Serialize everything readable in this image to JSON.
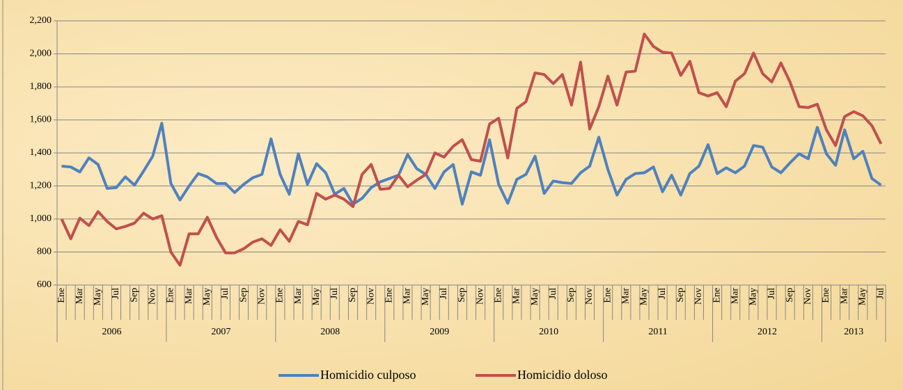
{
  "chart_data": {
    "type": "line",
    "categories": [
      "Ene",
      null,
      "Mar",
      null,
      "May",
      null,
      "Jul",
      null,
      "Sep",
      null,
      "Nov",
      null,
      "Ene",
      null,
      "Mar",
      null,
      "May",
      null,
      "Jul",
      null,
      "Sep",
      null,
      "Nov",
      null,
      "Ene",
      null,
      "Mar",
      null,
      "May",
      null,
      "Jul",
      null,
      "Sep",
      null,
      "Nov",
      null,
      "Ene",
      null,
      "Mar",
      null,
      "May",
      null,
      "Jul",
      null,
      "Sep",
      null,
      "Nov",
      null,
      "Ene",
      null,
      "Mar",
      null,
      "May",
      null,
      "Jul",
      null,
      "Sep",
      null,
      "Nov",
      null,
      "Ene",
      null,
      "Mar",
      null,
      "May",
      null,
      "Jul",
      null,
      "Sep",
      null,
      "Nov",
      null,
      "Ene",
      null,
      "Mar",
      null,
      "May",
      null,
      "Jul",
      null,
      "Sep",
      null,
      "Nov",
      null,
      "Ene",
      null,
      "Mar",
      null,
      "May",
      null,
      "Jul"
    ],
    "x_groups": [
      {
        "label": "2006",
        "count": 12
      },
      {
        "label": "2007",
        "count": 12
      },
      {
        "label": "2008",
        "count": 12
      },
      {
        "label": "2009",
        "count": 12
      },
      {
        "label": "2010",
        "count": 12
      },
      {
        "label": "2011",
        "count": 12
      },
      {
        "label": "2012",
        "count": 12
      },
      {
        "label": "2013",
        "count": 7
      }
    ],
    "series": [
      {
        "name": "Homicidio culposo",
        "color": "#4f81bd",
        "values": [
          1320,
          1315,
          1285,
          1370,
          1330,
          1185,
          1190,
          1255,
          1205,
          1290,
          1380,
          1580,
          1215,
          1115,
          1200,
          1275,
          1255,
          1215,
          1215,
          1160,
          1210,
          1250,
          1270,
          1485,
          1270,
          1150,
          1395,
          1210,
          1335,
          1280,
          1150,
          1185,
          1090,
          1125,
          1190,
          1225,
          1245,
          1265,
          1390,
          1305,
          1270,
          1185,
          1285,
          1330,
          1090,
          1285,
          1265,
          1480,
          1210,
          1095,
          1240,
          1270,
          1380,
          1155,
          1230,
          1220,
          1215,
          1280,
          1320,
          1495,
          1300,
          1145,
          1240,
          1275,
          1280,
          1315,
          1165,
          1265,
          1145,
          1275,
          1320,
          1450,
          1275,
          1310,
          1280,
          1320,
          1445,
          1435,
          1315,
          1280,
          1340,
          1395,
          1365,
          1555,
          1395,
          1325,
          1540,
          1365,
          1410,
          1245,
          1205
        ]
      },
      {
        "name": "Homicidio doloso",
        "color": "#c0504d",
        "values": [
          1000,
          880,
          1005,
          960,
          1045,
          985,
          940,
          955,
          975,
          1035,
          1000,
          1020,
          800,
          720,
          910,
          910,
          1010,
          890,
          795,
          795,
          820,
          860,
          880,
          840,
          935,
          865,
          985,
          965,
          1155,
          1120,
          1145,
          1120,
          1075,
          1270,
          1330,
          1180,
          1185,
          1265,
          1195,
          1235,
          1270,
          1400,
          1375,
          1440,
          1480,
          1360,
          1350,
          1575,
          1610,
          1370,
          1670,
          1710,
          1885,
          1875,
          1820,
          1875,
          1690,
          1950,
          1545,
          1680,
          1865,
          1690,
          1890,
          1895,
          2120,
          2045,
          2010,
          2005,
          1870,
          1955,
          1765,
          1745,
          1765,
          1680,
          1835,
          1880,
          2005,
          1880,
          1830,
          1945,
          1830,
          1680,
          1675,
          1695,
          1540,
          1445,
          1620,
          1650,
          1625,
          1565,
          1455
        ]
      }
    ],
    "ylim": [
      600,
      2200
    ],
    "yticks": [
      600,
      800,
      {
        "value": 1000,
        "label": "1,000"
      },
      {
        "value": 1200,
        "label": "1,200"
      },
      {
        "value": 1400,
        "label": "1,400"
      },
      {
        "value": 1600,
        "label": "1,600"
      },
      {
        "value": 1800,
        "label": "1,800"
      },
      {
        "value": 2000,
        "label": "2,000"
      },
      {
        "value": 2200,
        "label": "2,200"
      }
    ],
    "grid": true
  }
}
